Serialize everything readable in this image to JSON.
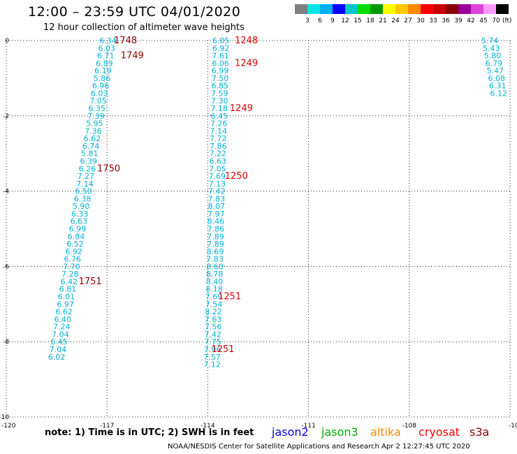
{
  "header": {
    "title": "12:00 – 23:59 UTC 04/01/2020",
    "subtitle": "12 hour collection of altimeter wave heights"
  },
  "colorbar": {
    "colors": [
      "#808080",
      "#00e5e5",
      "#00b0f0",
      "#0000ff",
      "#00c8c8",
      "#00dd00",
      "#009900",
      "#ffff00",
      "#ffc800",
      "#ff8800",
      "#ff0000",
      "#c80000",
      "#880000",
      "#990099",
      "#dd44dd",
      "#ff99ff",
      "#000000"
    ],
    "labels": [
      "3",
      "6",
      "9",
      "12",
      "15",
      "18",
      "21",
      "24",
      "27",
      "30",
      "33",
      "36",
      "39",
      "42",
      "45",
      "70",
      "(ft)"
    ]
  },
  "axes": {
    "x_ticks": [
      "-120",
      "-117",
      "-114",
      "-111",
      "-108",
      "-10"
    ],
    "y_ticks": [
      "0",
      "-2",
      "-4",
      "-6",
      "-8",
      "-10"
    ]
  },
  "tracks": [
    {
      "color": "#00b0d8",
      "points": [
        {
          "lon": -116.97,
          "lat": 0.0,
          "v": "6.34"
        },
        {
          "lon": -117.01,
          "lat": -0.2,
          "v": "6.03"
        },
        {
          "lon": -117.04,
          "lat": -0.4,
          "v": "6.71"
        },
        {
          "lon": -117.08,
          "lat": -0.6,
          "v": "6.89"
        },
        {
          "lon": -117.12,
          "lat": -0.8,
          "v": "6.19"
        },
        {
          "lon": -117.15,
          "lat": -1.0,
          "v": "5.86"
        },
        {
          "lon": -117.19,
          "lat": -1.2,
          "v": "6.96"
        },
        {
          "lon": -117.23,
          "lat": -1.4,
          "v": "6.03"
        },
        {
          "lon": -117.26,
          "lat": -1.6,
          "v": "7.05"
        },
        {
          "lon": -117.3,
          "lat": -1.8,
          "v": "6.35"
        },
        {
          "lon": -117.33,
          "lat": -2.0,
          "v": "7.39"
        },
        {
          "lon": -117.37,
          "lat": -2.2,
          "v": "5.95"
        },
        {
          "lon": -117.41,
          "lat": -2.4,
          "v": "7.36"
        },
        {
          "lon": -117.44,
          "lat": -2.6,
          "v": "6.62"
        },
        {
          "lon": -117.48,
          "lat": -2.8,
          "v": "6.74"
        },
        {
          "lon": -117.52,
          "lat": -3.0,
          "v": "5.81"
        },
        {
          "lon": -117.55,
          "lat": -3.2,
          "v": "6.39"
        },
        {
          "lon": -117.59,
          "lat": -3.4,
          "v": "6.26"
        },
        {
          "lon": -117.63,
          "lat": -3.6,
          "v": "7.27"
        },
        {
          "lon": -117.66,
          "lat": -3.8,
          "v": "7.14"
        },
        {
          "lon": -117.7,
          "lat": -4.0,
          "v": "6.50"
        },
        {
          "lon": -117.73,
          "lat": -4.2,
          "v": "6.38"
        },
        {
          "lon": -117.77,
          "lat": -4.4,
          "v": "5.90"
        },
        {
          "lon": -117.81,
          "lat": -4.6,
          "v": "6.33"
        },
        {
          "lon": -117.84,
          "lat": -4.8,
          "v": "6.63"
        },
        {
          "lon": -117.88,
          "lat": -5.0,
          "v": "6.99"
        },
        {
          "lon": -117.92,
          "lat": -5.2,
          "v": "6.84"
        },
        {
          "lon": -117.95,
          "lat": -5.4,
          "v": "6.52"
        },
        {
          "lon": -117.99,
          "lat": -5.6,
          "v": "6.92"
        },
        {
          "lon": -118.03,
          "lat": -5.8,
          "v": "6.76"
        },
        {
          "lon": -118.06,
          "lat": -6.0,
          "v": "7.70"
        },
        {
          "lon": -118.1,
          "lat": -6.2,
          "v": "7.28"
        },
        {
          "lon": -118.13,
          "lat": -6.4,
          "v": "6.42"
        },
        {
          "lon": -118.17,
          "lat": -6.6,
          "v": "6.81"
        },
        {
          "lon": -118.21,
          "lat": -6.8,
          "v": "6.01"
        },
        {
          "lon": -118.24,
          "lat": -7.0,
          "v": "6.97"
        },
        {
          "lon": -118.28,
          "lat": -7.2,
          "v": "6.62"
        },
        {
          "lon": -118.32,
          "lat": -7.4,
          "v": "6.40"
        },
        {
          "lon": -118.35,
          "lat": -7.6,
          "v": "7.24"
        },
        {
          "lon": -118.39,
          "lat": -7.8,
          "v": "7.04"
        },
        {
          "lon": -118.43,
          "lat": -8.0,
          "v": "6.45"
        },
        {
          "lon": -118.46,
          "lat": -8.2,
          "v": "7.04"
        },
        {
          "lon": -118.5,
          "lat": -8.4,
          "v": "6.02"
        }
      ]
    },
    {
      "color": "#00b0d8",
      "points": [
        {
          "lon": -113.61,
          "lat": 0.0,
          "v": "6.05"
        },
        {
          "lon": -113.61,
          "lat": -0.2,
          "v": "6.92"
        },
        {
          "lon": -113.62,
          "lat": -0.4,
          "v": "7.61"
        },
        {
          "lon": -113.62,
          "lat": -0.6,
          "v": "6.06"
        },
        {
          "lon": -113.63,
          "lat": -0.8,
          "v": "6.99"
        },
        {
          "lon": -113.63,
          "lat": -1.0,
          "v": "7.50"
        },
        {
          "lon": -113.64,
          "lat": -1.2,
          "v": "6.85"
        },
        {
          "lon": -113.65,
          "lat": -1.4,
          "v": "7.59"
        },
        {
          "lon": -113.65,
          "lat": -1.6,
          "v": "7.30"
        },
        {
          "lon": -113.66,
          "lat": -1.8,
          "v": "7.18"
        },
        {
          "lon": -113.66,
          "lat": -2.0,
          "v": "6.45"
        },
        {
          "lon": -113.67,
          "lat": -2.2,
          "v": "7.26"
        },
        {
          "lon": -113.68,
          "lat": -2.4,
          "v": "7.14"
        },
        {
          "lon": -113.69,
          "lat": -2.6,
          "v": "7.72"
        },
        {
          "lon": -113.69,
          "lat": -2.8,
          "v": "7.86"
        },
        {
          "lon": -113.7,
          "lat": -3.0,
          "v": "7.22"
        },
        {
          "lon": -113.7,
          "lat": -3.2,
          "v": "6.63"
        },
        {
          "lon": -113.71,
          "lat": -3.4,
          "v": "7.05"
        },
        {
          "lon": -113.72,
          "lat": -3.6,
          "v": "7.69"
        },
        {
          "lon": -113.72,
          "lat": -3.8,
          "v": "7.13"
        },
        {
          "lon": -113.73,
          "lat": -4.0,
          "v": "7.42"
        },
        {
          "lon": -113.74,
          "lat": -4.2,
          "v": "7.83"
        },
        {
          "lon": -113.74,
          "lat": -4.4,
          "v": "8.07"
        },
        {
          "lon": -113.75,
          "lat": -4.6,
          "v": "7.97"
        },
        {
          "lon": -113.76,
          "lat": -4.8,
          "v": "8.46"
        },
        {
          "lon": -113.76,
          "lat": -5.0,
          "v": "7.86"
        },
        {
          "lon": -113.77,
          "lat": -5.2,
          "v": "7.89"
        },
        {
          "lon": -113.77,
          "lat": -5.4,
          "v": "7.89"
        },
        {
          "lon": -113.78,
          "lat": -5.6,
          "v": "8.69"
        },
        {
          "lon": -113.79,
          "lat": -5.8,
          "v": "7.83"
        },
        {
          "lon": -113.79,
          "lat": -6.0,
          "v": "8.60"
        },
        {
          "lon": -113.8,
          "lat": -6.2,
          "v": "8.78"
        },
        {
          "lon": -113.8,
          "lat": -6.4,
          "v": "8.40"
        },
        {
          "lon": -113.81,
          "lat": -6.6,
          "v": "8.18"
        },
        {
          "lon": -113.82,
          "lat": -6.8,
          "v": "7.69"
        },
        {
          "lon": -113.82,
          "lat": -7.0,
          "v": "7.54"
        },
        {
          "lon": -113.83,
          "lat": -7.2,
          "v": "8.22"
        },
        {
          "lon": -113.84,
          "lat": -7.4,
          "v": "7.63"
        },
        {
          "lon": -113.84,
          "lat": -7.6,
          "v": "7.56"
        },
        {
          "lon": -113.85,
          "lat": -7.8,
          "v": "7.42"
        },
        {
          "lon": -113.85,
          "lat": -8.0,
          "v": "7.75"
        },
        {
          "lon": -113.86,
          "lat": -8.2,
          "v": "7.96"
        },
        {
          "lon": -113.87,
          "lat": -8.4,
          "v": "7.57"
        },
        {
          "lon": -113.87,
          "lat": -8.6,
          "v": "7.12"
        }
      ]
    },
    {
      "color": "#00b0d8",
      "points": [
        {
          "lon": -105.6,
          "lat": 0.0,
          "v": "5.74"
        },
        {
          "lon": -105.56,
          "lat": -0.2,
          "v": "5.43"
        },
        {
          "lon": -105.52,
          "lat": -0.4,
          "v": "5.80"
        },
        {
          "lon": -105.48,
          "lat": -0.6,
          "v": "6.79"
        },
        {
          "lon": -105.44,
          "lat": -0.8,
          "v": "5.47"
        },
        {
          "lon": -105.4,
          "lat": -1.0,
          "v": "6.08"
        },
        {
          "lon": -105.37,
          "lat": -1.2,
          "v": "6.31"
        },
        {
          "lon": -105.34,
          "lat": -1.4,
          "v": "6.12"
        }
      ]
    }
  ],
  "time_labels": [
    {
      "lon": -116.45,
      "lat": 0.0,
      "text": "1748",
      "color": "#880000"
    },
    {
      "lon": -116.25,
      "lat": -0.4,
      "text": "1749",
      "color": "#880000"
    },
    {
      "lon": -116.95,
      "lat": -3.4,
      "text": "1750",
      "color": "#880000"
    },
    {
      "lon": -117.5,
      "lat": -6.4,
      "text": "1751",
      "color": "#880000"
    },
    {
      "lon": -112.85,
      "lat": 0.0,
      "text": "1248",
      "color": "#dd0000"
    },
    {
      "lon": -112.85,
      "lat": -0.6,
      "text": "1249",
      "color": "#dd0000"
    },
    {
      "lon": -113.0,
      "lat": -1.8,
      "text": "1249",
      "color": "#dd0000"
    },
    {
      "lon": -113.15,
      "lat": -3.6,
      "text": "1250",
      "color": "#dd0000"
    },
    {
      "lon": -113.35,
      "lat": -6.8,
      "text": "1251",
      "color": "#dd0000"
    },
    {
      "lon": -113.55,
      "lat": -8.2,
      "text": "1251",
      "color": "#dd0000"
    }
  ],
  "footer": {
    "note": "note:  1) Time is in UTC;  2) SWH is in feet",
    "legend": [
      {
        "name": "jason2",
        "color": "#0000dd"
      },
      {
        "name": "jason3",
        "color": "#00aa00"
      },
      {
        "name": "altika",
        "color": "#ff8800"
      },
      {
        "name": "cryosat",
        "color": "#ee0000"
      },
      {
        "name": "s3a",
        "color": "#880000"
      }
    ],
    "credit": "NOAA/NESDIS Center for Satellite Applications and Research    Apr  2 12:27:45 UTC 2020"
  }
}
